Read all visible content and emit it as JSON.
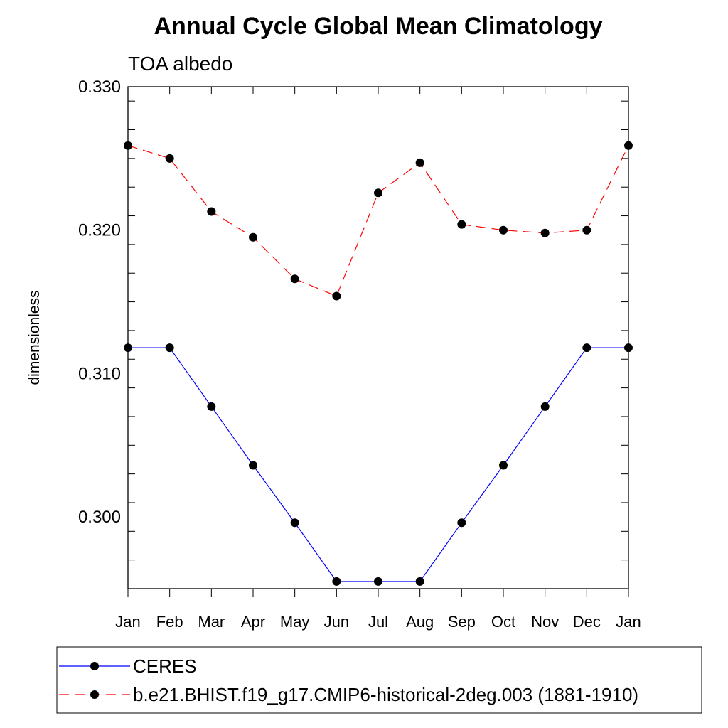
{
  "chart_data": {
    "type": "line",
    "title": "Annual Cycle Global Mean Climatology",
    "subtitle": "TOA albedo",
    "ylabel": "dimensionless",
    "xlabel": "",
    "categories": [
      "Jan",
      "Feb",
      "Mar",
      "Apr",
      "May",
      "Jun",
      "Jul",
      "Aug",
      "Sep",
      "Oct",
      "Nov",
      "Dec",
      "Jan"
    ],
    "ylim": [
      0.295,
      0.33
    ],
    "yticks": [
      0.3,
      0.31,
      0.32,
      0.33
    ],
    "ytick_labels": [
      "0.300",
      "0.310",
      "0.320",
      "0.330"
    ],
    "grid": false,
    "legend_position": "bottom",
    "series": [
      {
        "name": "CERES",
        "color": "#0000ff",
        "line_style": "solid",
        "marker": "filled-circle",
        "values": [
          0.3118,
          0.3118,
          0.3077,
          0.3036,
          0.2996,
          0.2955,
          0.2955,
          0.2955,
          0.2996,
          0.3036,
          0.3077,
          0.3118,
          0.3118
        ]
      },
      {
        "name": "b.e21.BHIST.f19_g17.CMIP6-historical-2deg.003 (1881-1910)",
        "color": "#ff0000",
        "line_style": "dashed",
        "marker": "filled-circle",
        "values": [
          0.3259,
          0.325,
          0.3213,
          0.3195,
          0.3166,
          0.3154,
          0.3226,
          0.3247,
          0.3204,
          0.32,
          0.3198,
          0.32,
          0.3259
        ]
      }
    ]
  }
}
